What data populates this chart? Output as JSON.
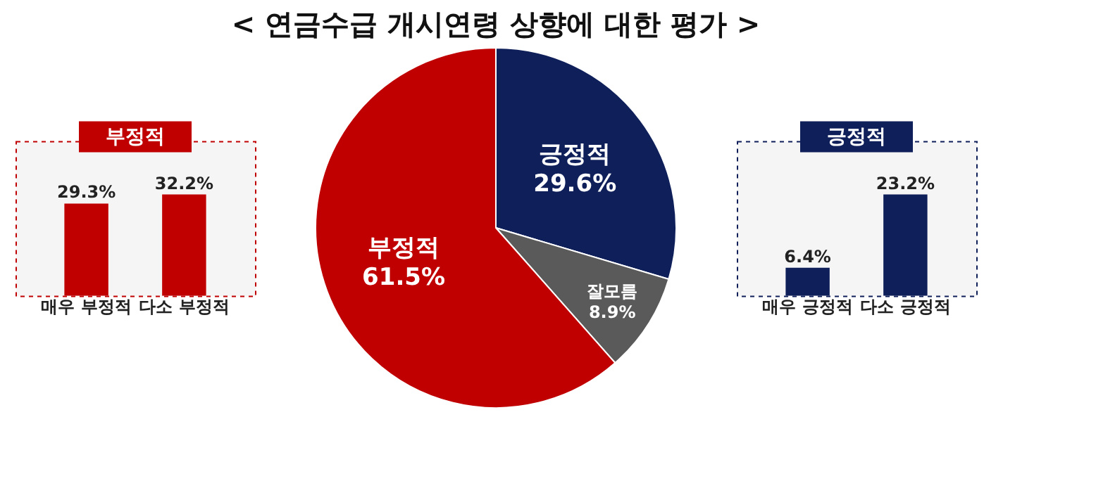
{
  "chart_data": [
    {
      "type": "bar",
      "title": "부정적",
      "categories": [
        "매우 부정적",
        "다소 부정적"
      ],
      "values": [
        29.3,
        32.2
      ],
      "color": "#c00000",
      "value_labels": [
        "29.3%",
        "32.2%"
      ]
    },
    {
      "type": "pie",
      "title": "< 연금수급 개시연령 상향에 대한 평가 >",
      "categories": [
        "긍정적",
        "잘모름",
        "부정적"
      ],
      "values": [
        29.6,
        8.9,
        61.5
      ],
      "colors": [
        "#0f1f5a",
        "#5a5a5a",
        "#c00000"
      ],
      "value_labels": [
        "29.6%",
        "8.9%",
        "61.5%"
      ],
      "legend": false
    },
    {
      "type": "bar",
      "title": "긍정적",
      "categories": [
        "매우 긍정적",
        "다소 긍정적"
      ],
      "values": [
        6.4,
        23.2
      ],
      "color": "#0f1f5a",
      "value_labels": [
        "6.4%",
        "23.2%"
      ]
    }
  ]
}
